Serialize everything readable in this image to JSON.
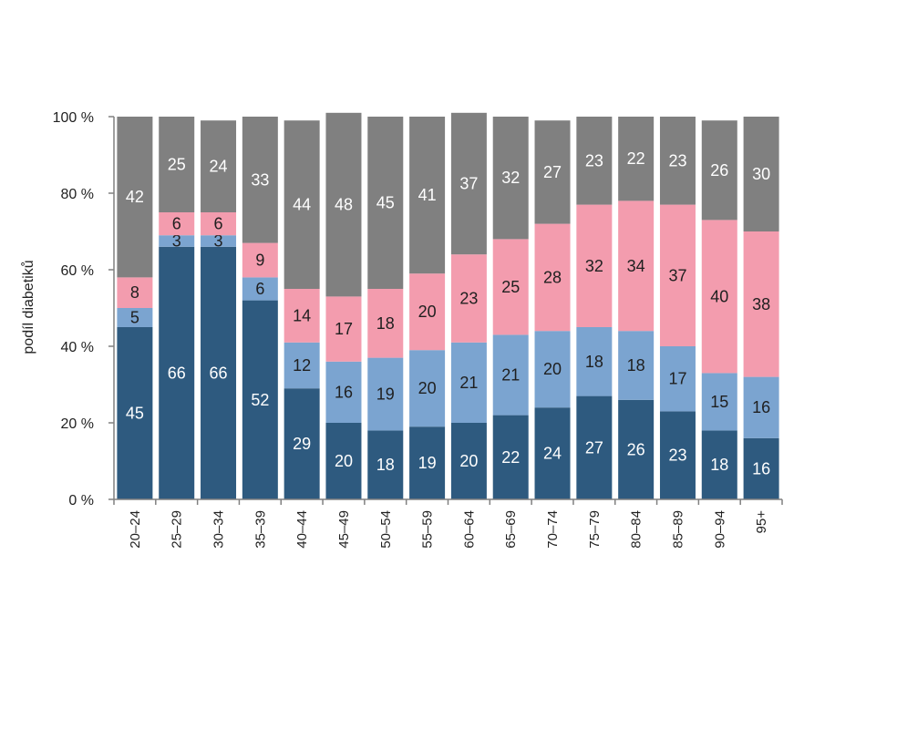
{
  "chart_data": {
    "type": "bar",
    "stacked": true,
    "ylabel": "podíl diabetiků",
    "ylim": [
      0,
      100
    ],
    "y_ticks": [
      0,
      20,
      40,
      60,
      80,
      100
    ],
    "y_tick_labels": [
      "0 %",
      "20 %",
      "40 %",
      "60 %",
      "80 %",
      "100 %"
    ],
    "categories": [
      "20–24",
      "25–29",
      "30–34",
      "35–39",
      "40–44",
      "45–49",
      "50–54",
      "55–59",
      "60–64",
      "65–69",
      "70–74",
      "75–79",
      "80–84",
      "85–89",
      "90–94",
      "95+"
    ],
    "series": [
      {
        "color": "#2e5a7f",
        "label_color": "#ffffff",
        "values": [
          45,
          66,
          66,
          52,
          29,
          20,
          18,
          19,
          20,
          22,
          24,
          27,
          26,
          23,
          18,
          16
        ]
      },
      {
        "color": "#7ba4d0",
        "label_color": "#1f1f1f",
        "values": [
          5,
          3,
          3,
          6,
          12,
          16,
          19,
          20,
          21,
          21,
          20,
          18,
          18,
          17,
          15,
          16
        ]
      },
      {
        "color": "#f39cae",
        "label_color": "#1f1f1f",
        "values": [
          8,
          6,
          6,
          9,
          14,
          17,
          18,
          20,
          23,
          25,
          28,
          32,
          34,
          37,
          40,
          38
        ]
      },
      {
        "color": "#808080",
        "label_color": "#ffffff",
        "values": [
          42,
          25,
          24,
          33,
          44,
          48,
          45,
          41,
          37,
          32,
          27,
          23,
          22,
          23,
          26,
          30
        ]
      }
    ],
    "grid": false,
    "legend": "none"
  }
}
